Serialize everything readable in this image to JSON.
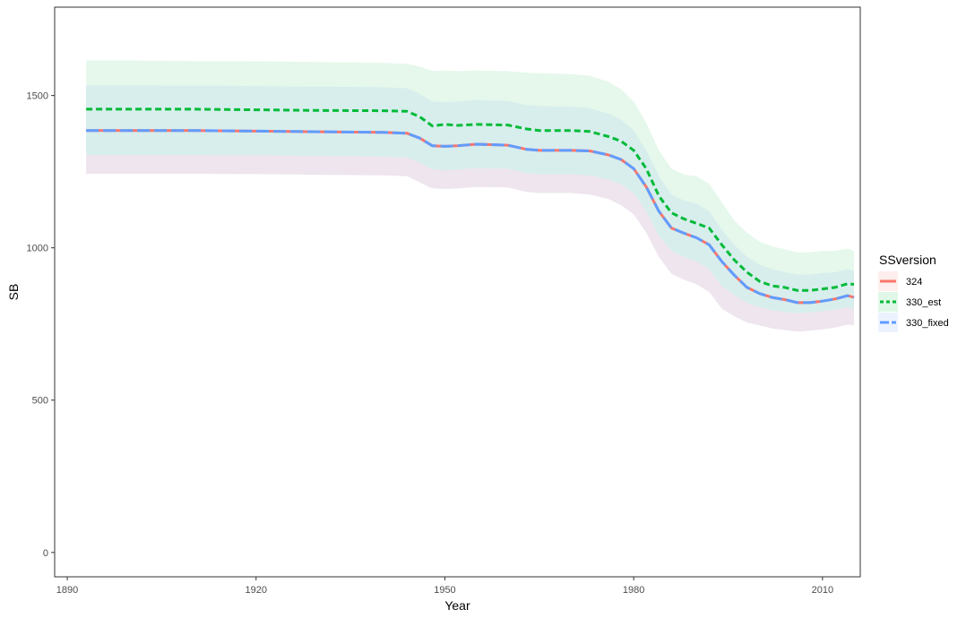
{
  "chart_data": {
    "type": "line",
    "title": "",
    "xlabel": "Year",
    "ylabel": "SB",
    "xlim": [
      1888,
      2016
    ],
    "ylim": [
      -80,
      1790
    ],
    "x_ticks": [
      1890,
      1920,
      1950,
      1980,
      2010
    ],
    "y_ticks": [
      0,
      500,
      1000,
      1500
    ],
    "grid": false,
    "legend": {
      "title": "SSversion",
      "position": "right",
      "entries": [
        "324",
        "330_est",
        "330_fixed"
      ]
    },
    "x": [
      1893,
      1900,
      1910,
      1920,
      1930,
      1940,
      1944,
      1946,
      1948,
      1950,
      1952,
      1955,
      1960,
      1963,
      1965,
      1970,
      1973,
      1976,
      1978,
      1980,
      1982,
      1984,
      1986,
      1988,
      1990,
      1992,
      1994,
      1996,
      1998,
      2000,
      2002,
      2004,
      2006,
      2008,
      2010,
      2012,
      2014,
      2015
    ],
    "series": [
      {
        "name": "324",
        "color": "#F8766D",
        "linetype": "solid",
        "values": [
          1385,
          1385,
          1385,
          1383,
          1381,
          1379,
          1376,
          1360,
          1335,
          1333,
          1335,
          1340,
          1337,
          1323,
          1320,
          1320,
          1318,
          1305,
          1290,
          1260,
          1200,
          1120,
          1065,
          1048,
          1033,
          1010,
          955,
          910,
          870,
          850,
          837,
          830,
          820,
          820,
          825,
          832,
          843,
          837
        ],
        "lower": [
          1243,
          1243,
          1243,
          1242,
          1240,
          1238,
          1235,
          1215,
          1195,
          1193,
          1195,
          1200,
          1198,
          1183,
          1180,
          1180,
          1175,
          1160,
          1140,
          1110,
          1050,
          970,
          915,
          895,
          880,
          855,
          800,
          775,
          755,
          745,
          735,
          730,
          725,
          728,
          732,
          738,
          748,
          745
        ],
        "upper": [
          1305,
          1305,
          1305,
          1304,
          1302,
          1300,
          1297,
          1280,
          1258,
          1255,
          1257,
          1262,
          1260,
          1245,
          1242,
          1242,
          1238,
          1225,
          1208,
          1180,
          1120,
          1040,
          990,
          970,
          955,
          930,
          875,
          845,
          820,
          805,
          795,
          790,
          785,
          788,
          792,
          797,
          805,
          800
        ]
      },
      {
        "name": "330_est",
        "color": "#00BA38",
        "linetype": "dashed",
        "values": [
          1455,
          1455,
          1455,
          1453,
          1451,
          1450,
          1448,
          1430,
          1400,
          1405,
          1402,
          1405,
          1403,
          1390,
          1385,
          1385,
          1382,
          1365,
          1350,
          1320,
          1260,
          1170,
          1115,
          1095,
          1080,
          1065,
          1010,
          960,
          920,
          890,
          875,
          870,
          860,
          860,
          865,
          870,
          882,
          880
        ],
        "lower": [
          1305,
          1305,
          1305,
          1304,
          1302,
          1300,
          1297,
          1280,
          1258,
          1255,
          1257,
          1262,
          1260,
          1245,
          1242,
          1242,
          1238,
          1225,
          1208,
          1180,
          1120,
          1040,
          990,
          970,
          955,
          930,
          875,
          845,
          820,
          805,
          795,
          790,
          785,
          788,
          792,
          797,
          805,
          800
        ],
        "upper": [
          1615,
          1615,
          1613,
          1612,
          1610,
          1607,
          1604,
          1595,
          1580,
          1582,
          1580,
          1582,
          1580,
          1575,
          1573,
          1570,
          1565,
          1545,
          1520,
          1480,
          1410,
          1320,
          1260,
          1240,
          1235,
          1210,
          1150,
          1090,
          1050,
          1020,
          1005,
          995,
          985,
          985,
          990,
          990,
          998,
          990
        ]
      },
      {
        "name": "330_fixed",
        "color": "#619CFF",
        "linetype": "longdash",
        "values": [
          1385,
          1385,
          1385,
          1383,
          1381,
          1379,
          1376,
          1360,
          1335,
          1333,
          1335,
          1340,
          1337,
          1323,
          1320,
          1320,
          1318,
          1305,
          1290,
          1260,
          1200,
          1120,
          1065,
          1048,
          1033,
          1010,
          955,
          910,
          870,
          850,
          837,
          830,
          820,
          820,
          825,
          832,
          843,
          837
        ],
        "lower": [
          1243,
          1243,
          1243,
          1242,
          1240,
          1238,
          1235,
          1215,
          1195,
          1193,
          1195,
          1200,
          1198,
          1183,
          1180,
          1180,
          1175,
          1160,
          1140,
          1110,
          1050,
          970,
          915,
          895,
          880,
          855,
          800,
          775,
          755,
          745,
          735,
          730,
          725,
          728,
          732,
          738,
          748,
          745
        ],
        "upper": [
          1533,
          1533,
          1532,
          1531,
          1529,
          1527,
          1524,
          1505,
          1480,
          1478,
          1480,
          1485,
          1482,
          1468,
          1465,
          1463,
          1458,
          1440,
          1420,
          1385,
          1320,
          1235,
          1175,
          1155,
          1145,
          1120,
          1060,
          1010,
          970,
          945,
          930,
          920,
          912,
          912,
          917,
          920,
          930,
          925
        ]
      }
    ]
  }
}
